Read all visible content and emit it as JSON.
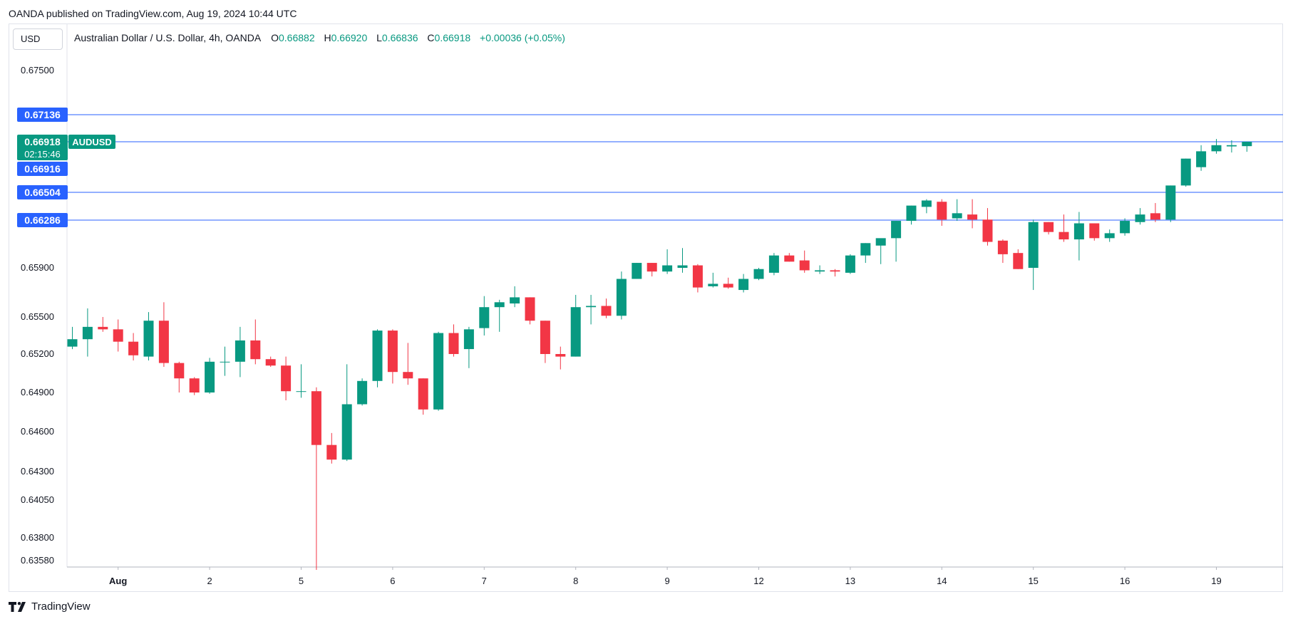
{
  "header": {
    "published": "OANDA published on TradingView.com, Aug 19, 2024 10:44 UTC"
  },
  "currency_button": "USD",
  "legend": {
    "symbol": "Australian Dollar / U.S. Dollar, 4h, OANDA",
    "open_label": "O",
    "open": "0.66882",
    "high_label": "H",
    "high": "0.66920",
    "low_label": "L",
    "low": "0.66836",
    "close_label": "C",
    "close": "0.66918",
    "change": "+0.00036 (+0.05%)"
  },
  "footer": {
    "brand": "TradingView"
  },
  "colors": {
    "up": "#089981",
    "down": "#f23645",
    "line": "#2962ff",
    "label": "#2962ff"
  },
  "chart_data": {
    "type": "candlestick",
    "symbol": "AUDUSD",
    "interval": "4h",
    "y_ticks": [
      "0.67500",
      "0.65900",
      "0.65500",
      "0.65200",
      "0.64900",
      "0.64600",
      "0.64300",
      "0.64050",
      "0.63800",
      "0.63580"
    ],
    "x_ticks": [
      {
        "label": "Aug",
        "bold": true,
        "bar": 3
      },
      {
        "label": "2",
        "bar": 9
      },
      {
        "label": "5",
        "bar": 15
      },
      {
        "label": "6",
        "bar": 21
      },
      {
        "label": "7",
        "bar": 27
      },
      {
        "label": "8",
        "bar": 33
      },
      {
        "label": "9",
        "bar": 39
      },
      {
        "label": "12",
        "bar": 45
      },
      {
        "label": "13",
        "bar": 51
      },
      {
        "label": "14",
        "bar": 57
      },
      {
        "label": "15",
        "bar": 63
      },
      {
        "label": "16",
        "bar": 69
      },
      {
        "label": "19",
        "bar": 75
      }
    ],
    "horizontal_lines": [
      {
        "value": 0.67136,
        "label": "0.67136"
      },
      {
        "value": 0.66504,
        "label": "0.66504"
      },
      {
        "value": 0.66286,
        "label": "0.66286"
      }
    ],
    "last_price": {
      "value": 0.66918,
      "label": "0.66918",
      "countdown": "02:15:46",
      "tag": "AUDUSD"
    },
    "crosshair_price": {
      "label": "0.66916"
    },
    "candles": [
      {
        "o": 0.6526,
        "h": 0.6542,
        "l": 0.6524,
        "c": 0.6532
      },
      {
        "o": 0.6532,
        "h": 0.6557,
        "l": 0.6518,
        "c": 0.6542
      },
      {
        "o": 0.6542,
        "h": 0.655,
        "l": 0.6538,
        "c": 0.654
      },
      {
        "o": 0.654,
        "h": 0.6548,
        "l": 0.6522,
        "c": 0.653
      },
      {
        "o": 0.653,
        "h": 0.6537,
        "l": 0.6515,
        "c": 0.6519
      },
      {
        "o": 0.6518,
        "h": 0.6554,
        "l": 0.6515,
        "c": 0.6547
      },
      {
        "o": 0.6547,
        "h": 0.6562,
        "l": 0.651,
        "c": 0.6513
      },
      {
        "o": 0.6513,
        "h": 0.6514,
        "l": 0.649,
        "c": 0.6501
      },
      {
        "o": 0.6501,
        "h": 0.6502,
        "l": 0.6488,
        "c": 0.649
      },
      {
        "o": 0.649,
        "h": 0.6517,
        "l": 0.6489,
        "c": 0.6514
      },
      {
        "o": 0.6514,
        "h": 0.6526,
        "l": 0.6503,
        "c": 0.6514
      },
      {
        "o": 0.6514,
        "h": 0.6542,
        "l": 0.6502,
        "c": 0.6531
      },
      {
        "o": 0.6531,
        "h": 0.6548,
        "l": 0.6512,
        "c": 0.6516
      },
      {
        "o": 0.6516,
        "h": 0.6518,
        "l": 0.651,
        "c": 0.6511
      },
      {
        "o": 0.6511,
        "h": 0.6518,
        "l": 0.6484,
        "c": 0.6491
      },
      {
        "o": 0.6491,
        "h": 0.6512,
        "l": 0.6486,
        "c": 0.6491
      },
      {
        "o": 0.6491,
        "h": 0.6494,
        "l": 0.635,
        "c": 0.645
      },
      {
        "o": 0.645,
        "h": 0.6459,
        "l": 0.6436,
        "c": 0.6439
      },
      {
        "o": 0.6439,
        "h": 0.6512,
        "l": 0.6438,
        "c": 0.6481
      },
      {
        "o": 0.6481,
        "h": 0.6501,
        "l": 0.648,
        "c": 0.6499
      },
      {
        "o": 0.6499,
        "h": 0.654,
        "l": 0.6494,
        "c": 0.6539
      },
      {
        "o": 0.6539,
        "h": 0.654,
        "l": 0.6497,
        "c": 0.6506
      },
      {
        "o": 0.6506,
        "h": 0.6529,
        "l": 0.6496,
        "c": 0.6501
      },
      {
        "o": 0.6501,
        "h": 0.6501,
        "l": 0.6473,
        "c": 0.6477
      },
      {
        "o": 0.6477,
        "h": 0.6538,
        "l": 0.6476,
        "c": 0.6537
      },
      {
        "o": 0.6537,
        "h": 0.6544,
        "l": 0.6518,
        "c": 0.652
      },
      {
        "o": 0.6524,
        "h": 0.6542,
        "l": 0.6509,
        "c": 0.654
      },
      {
        "o": 0.6541,
        "h": 0.6567,
        "l": 0.6535,
        "c": 0.6558
      },
      {
        "o": 0.6558,
        "h": 0.6564,
        "l": 0.6538,
        "c": 0.6562
      },
      {
        "o": 0.6561,
        "h": 0.6575,
        "l": 0.6558,
        "c": 0.6566
      },
      {
        "o": 0.6566,
        "h": 0.6566,
        "l": 0.6544,
        "c": 0.6547
      },
      {
        "o": 0.6547,
        "h": 0.6547,
        "l": 0.6513,
        "c": 0.652
      },
      {
        "o": 0.652,
        "h": 0.6526,
        "l": 0.6508,
        "c": 0.6518
      },
      {
        "o": 0.6518,
        "h": 0.6568,
        "l": 0.6518,
        "c": 0.6558
      },
      {
        "o": 0.6558,
        "h": 0.6568,
        "l": 0.6544,
        "c": 0.6559
      },
      {
        "o": 0.6559,
        "h": 0.6565,
        "l": 0.6549,
        "c": 0.6551
      },
      {
        "o": 0.6551,
        "h": 0.6587,
        "l": 0.6548,
        "c": 0.6581
      },
      {
        "o": 0.6581,
        "h": 0.6594,
        "l": 0.6581,
        "c": 0.6594
      },
      {
        "o": 0.6594,
        "h": 0.6594,
        "l": 0.6583,
        "c": 0.6587
      },
      {
        "o": 0.6587,
        "h": 0.6605,
        "l": 0.6585,
        "c": 0.6592
      },
      {
        "o": 0.659,
        "h": 0.6606,
        "l": 0.6586,
        "c": 0.6592
      },
      {
        "o": 0.6592,
        "h": 0.6593,
        "l": 0.657,
        "c": 0.6574
      },
      {
        "o": 0.6575,
        "h": 0.6586,
        "l": 0.6574,
        "c": 0.6577
      },
      {
        "o": 0.6577,
        "h": 0.6582,
        "l": 0.6573,
        "c": 0.6574
      },
      {
        "o": 0.6572,
        "h": 0.6585,
        "l": 0.657,
        "c": 0.6581
      },
      {
        "o": 0.6581,
        "h": 0.659,
        "l": 0.658,
        "c": 0.6589
      },
      {
        "o": 0.6586,
        "h": 0.6602,
        "l": 0.6584,
        "c": 0.66
      },
      {
        "o": 0.66,
        "h": 0.6602,
        "l": 0.6595,
        "c": 0.6595
      },
      {
        "o": 0.6596,
        "h": 0.6604,
        "l": 0.6586,
        "c": 0.6588
      },
      {
        "o": 0.6587,
        "h": 0.6592,
        "l": 0.6585,
        "c": 0.6588
      },
      {
        "o": 0.6588,
        "h": 0.6589,
        "l": 0.6583,
        "c": 0.6587
      },
      {
        "o": 0.6586,
        "h": 0.6601,
        "l": 0.6585,
        "c": 0.66
      },
      {
        "o": 0.66,
        "h": 0.661,
        "l": 0.6594,
        "c": 0.661
      },
      {
        "o": 0.6608,
        "h": 0.6611,
        "l": 0.6593,
        "c": 0.6614
      },
      {
        "o": 0.6614,
        "h": 0.6628,
        "l": 0.6595,
        "c": 0.6628
      },
      {
        "o": 0.6628,
        "h": 0.664,
        "l": 0.6625,
        "c": 0.664
      },
      {
        "o": 0.6639,
        "h": 0.6645,
        "l": 0.6634,
        "c": 0.6644
      },
      {
        "o": 0.6643,
        "h": 0.6645,
        "l": 0.6624,
        "c": 0.6629
      },
      {
        "o": 0.663,
        "h": 0.6645,
        "l": 0.6628,
        "c": 0.6634
      },
      {
        "o": 0.6633,
        "h": 0.6645,
        "l": 0.6622,
        "c": 0.6629
      },
      {
        "o": 0.6629,
        "h": 0.6638,
        "l": 0.6608,
        "c": 0.6611
      },
      {
        "o": 0.6612,
        "h": 0.6613,
        "l": 0.6594,
        "c": 0.6601
      },
      {
        "o": 0.6602,
        "h": 0.6605,
        "l": 0.6589,
        "c": 0.6589
      },
      {
        "o": 0.659,
        "h": 0.6629,
        "l": 0.6572,
        "c": 0.6627
      },
      {
        "o": 0.6627,
        "h": 0.6627,
        "l": 0.6617,
        "c": 0.6619
      },
      {
        "o": 0.6619,
        "h": 0.6633,
        "l": 0.6611,
        "c": 0.6613
      },
      {
        "o": 0.6613,
        "h": 0.6635,
        "l": 0.6596,
        "c": 0.6626
      },
      {
        "o": 0.6626,
        "h": 0.6626,
        "l": 0.6612,
        "c": 0.6614
      },
      {
        "o": 0.6614,
        "h": 0.6621,
        "l": 0.6611,
        "c": 0.6618
      },
      {
        "o": 0.6618,
        "h": 0.663,
        "l": 0.6616,
        "c": 0.6628
      },
      {
        "o": 0.6627,
        "h": 0.6638,
        "l": 0.6625,
        "c": 0.6633
      },
      {
        "o": 0.6634,
        "h": 0.6642,
        "l": 0.6627,
        "c": 0.6629
      },
      {
        "o": 0.6629,
        "h": 0.6656,
        "l": 0.6627,
        "c": 0.6656
      },
      {
        "o": 0.6656,
        "h": 0.6678,
        "l": 0.6655,
        "c": 0.6678
      },
      {
        "o": 0.6671,
        "h": 0.6689,
        "l": 0.6668,
        "c": 0.6684
      },
      {
        "o": 0.6684,
        "h": 0.6694,
        "l": 0.6682,
        "c": 0.6689
      },
      {
        "o": 0.6688,
        "h": 0.6693,
        "l": 0.6683,
        "c": 0.6689
      },
      {
        "o": 0.66882,
        "h": 0.6692,
        "l": 0.66836,
        "c": 0.66918
      }
    ]
  }
}
